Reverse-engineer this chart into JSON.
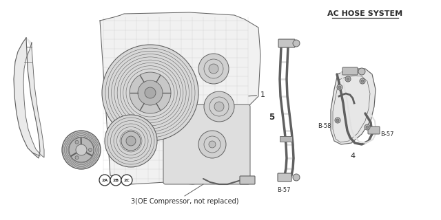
{
  "title": "AC HOSE SYSTEM",
  "label_1": "1",
  "label_2A": "2A",
  "label_2B": "2B",
  "label_2C": "2C",
  "label_3": "3(OE Compressor, not replaced)",
  "label_4": "4",
  "label_5": "5",
  "label_B57a": "B-57",
  "label_B58": "B-58",
  "label_B57b": "B-57",
  "bg_color": "#ffffff",
  "line_color": "#606060",
  "dark_color": "#2a2a2a",
  "fig_width": 6.4,
  "fig_height": 3.2,
  "dpi": 100
}
